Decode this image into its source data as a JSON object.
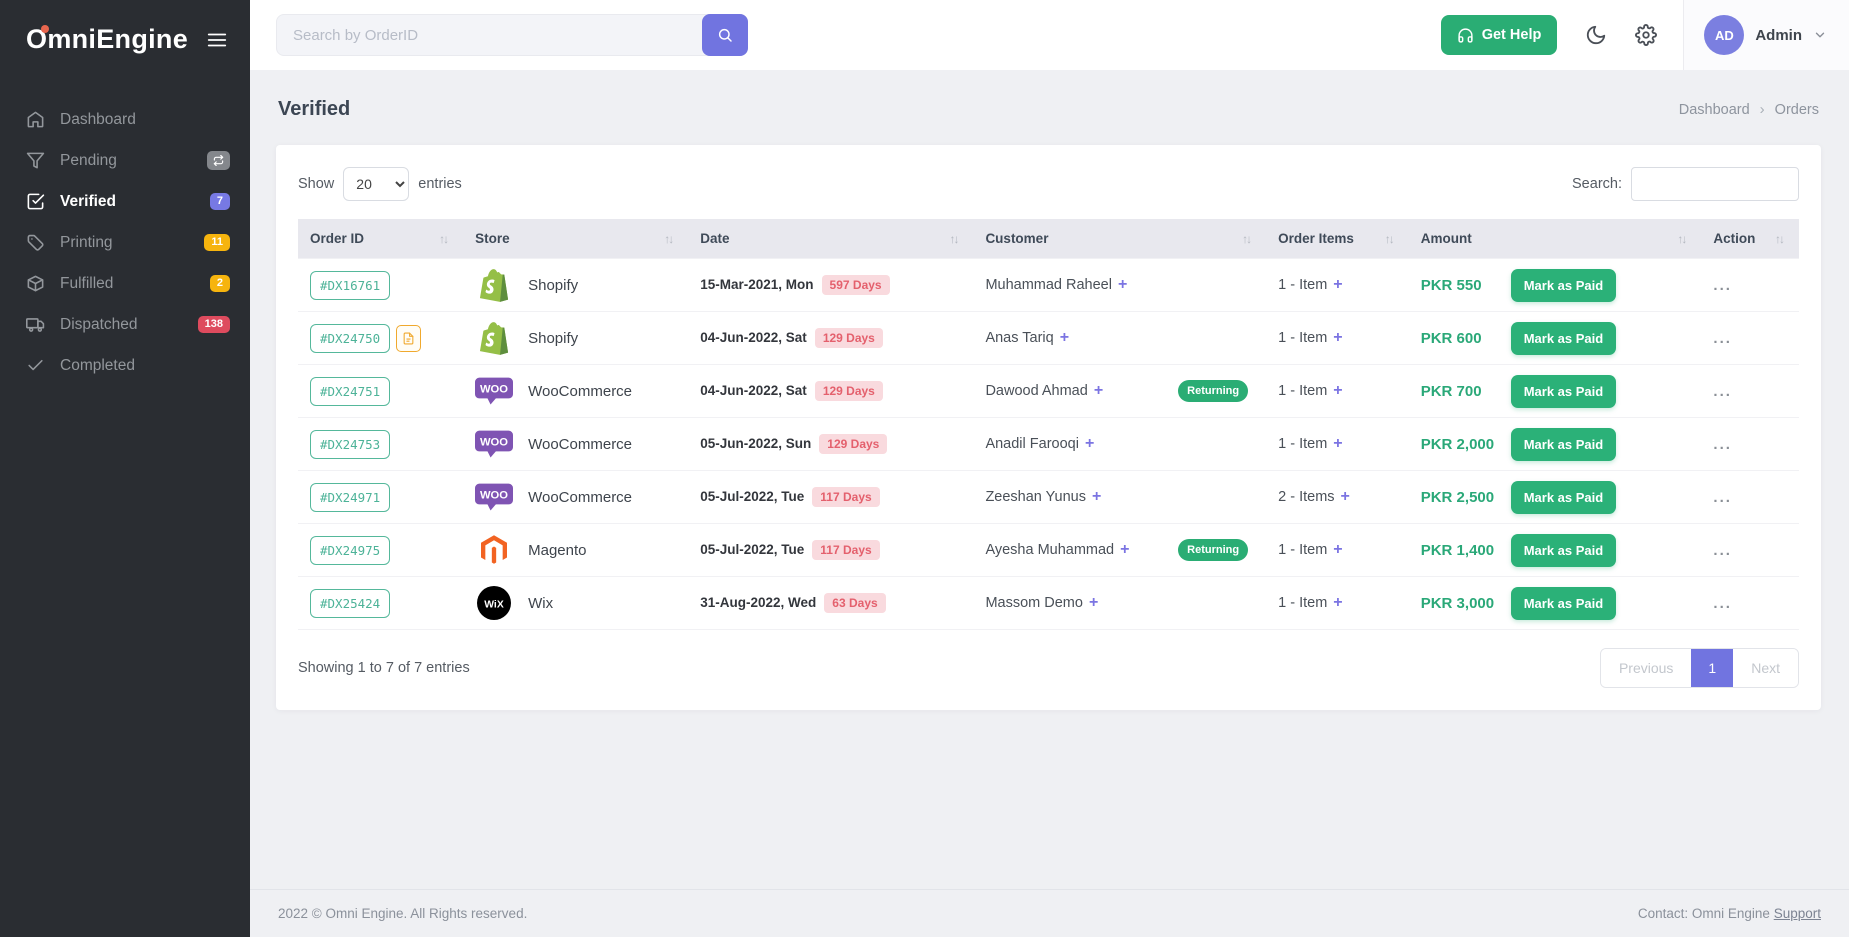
{
  "brand": {
    "name": "OmniEngine",
    "accent_color": "#e8664e"
  },
  "sidebar": {
    "items": [
      {
        "label": "Dashboard",
        "icon": "home",
        "badge": "",
        "active": false
      },
      {
        "label": "Pending",
        "icon": "funnel",
        "badge": "",
        "badge_icon": "sync-arrows",
        "active": false
      },
      {
        "label": "Verified",
        "icon": "check-square",
        "badge": "7",
        "active": true
      },
      {
        "label": "Printing",
        "icon": "tag",
        "badge": "11",
        "active": false
      },
      {
        "label": "Fulfilled",
        "icon": "package",
        "badge": "2",
        "active": false
      },
      {
        "label": "Dispatched",
        "icon": "truck",
        "badge": "138",
        "active": false
      },
      {
        "label": "Completed",
        "icon": "check",
        "badge": "",
        "active": false
      }
    ]
  },
  "topbar": {
    "search_placeholder": "Search by OrderID",
    "get_help_label": "Get Help",
    "user_initials": "AD",
    "user_name": "Admin"
  },
  "page": {
    "title": "Verified",
    "breadcrumb": [
      "Dashboard",
      "Orders"
    ],
    "breadcrumb_separator": "›"
  },
  "table_controls": {
    "show_label": "Show",
    "page_size": "20",
    "entries_label": "entries",
    "search_label": "Search:"
  },
  "table": {
    "columns": [
      "Order ID",
      "Store",
      "Date",
      "Customer",
      "Order Items",
      "Amount",
      "Action"
    ],
    "returning_label": "Returning",
    "rows": [
      {
        "order_id": "#DX16761",
        "has_note": false,
        "store": "Shopify",
        "store_logo": "shopify",
        "date": "15-Mar-2021, Mon",
        "days": "597 Days",
        "customer": "Muhammad Raheel",
        "returning": false,
        "items": "1 - Item",
        "amount": "PKR 550",
        "action": "Mark as Paid"
      },
      {
        "order_id": "#DX24750",
        "has_note": true,
        "store": "Shopify",
        "store_logo": "shopify",
        "date": "04-Jun-2022, Sat",
        "days": "129 Days",
        "customer": "Anas Tariq",
        "returning": false,
        "items": "1 - Item",
        "amount": "PKR 600",
        "action": "Mark as Paid"
      },
      {
        "order_id": "#DX24751",
        "has_note": false,
        "store": "WooCommerce",
        "store_logo": "woo",
        "date": "04-Jun-2022, Sat",
        "days": "129 Days",
        "customer": "Dawood Ahmad",
        "returning": true,
        "items": "1 - Item",
        "amount": "PKR 700",
        "action": "Mark as Paid"
      },
      {
        "order_id": "#DX24753",
        "has_note": false,
        "store": "WooCommerce",
        "store_logo": "woo",
        "date": "05-Jun-2022, Sun",
        "days": "129 Days",
        "customer": "Anadil Farooqi",
        "returning": false,
        "items": "1 - Item",
        "amount": "PKR 2,000",
        "action": "Mark as Paid"
      },
      {
        "order_id": "#DX24971",
        "has_note": false,
        "store": "WooCommerce",
        "store_logo": "woo",
        "date": "05-Jul-2022, Tue",
        "days": "117 Days",
        "customer": "Zeeshan Yunus",
        "returning": false,
        "items": "2 - Items",
        "amount": "PKR 2,500",
        "action": "Mark as Paid"
      },
      {
        "order_id": "#DX24975",
        "has_note": false,
        "store": "Magento",
        "store_logo": "magento",
        "date": "05-Jul-2022, Tue",
        "days": "117 Days",
        "customer": "Ayesha Muhammad",
        "returning": true,
        "items": "1 - Item",
        "amount": "PKR 1,400",
        "action": "Mark as Paid"
      },
      {
        "order_id": "#DX25424",
        "has_note": false,
        "store": "Wix",
        "store_logo": "wix",
        "date": "31-Aug-2022, Wed",
        "days": "63 Days",
        "customer": "Massom Demo",
        "returning": false,
        "items": "1 - Item",
        "amount": "PKR 3,000",
        "action": "Mark as Paid"
      }
    ]
  },
  "pagination": {
    "summary": "Showing 1 to 7 of 7 entries",
    "previous_label": "Previous",
    "current_page": "1",
    "next_label": "Next"
  },
  "footer": {
    "copyright": "2022 © Omni Engine. All Rights reserved.",
    "contact_text": "Contact: Omni Engine",
    "support_label": "Support"
  },
  "colors": {
    "sidebar_bg": "#2a2d32",
    "accent_purple": "#7174e0",
    "green": "#2aad74",
    "badge_yellow": "#f6b40e",
    "badge_red": "#de4b5e",
    "days_pill_bg": "#f9dade",
    "days_pill_text": "#e4606d",
    "order_id_green": "#4db398",
    "brand_dot": "#e8664e"
  }
}
